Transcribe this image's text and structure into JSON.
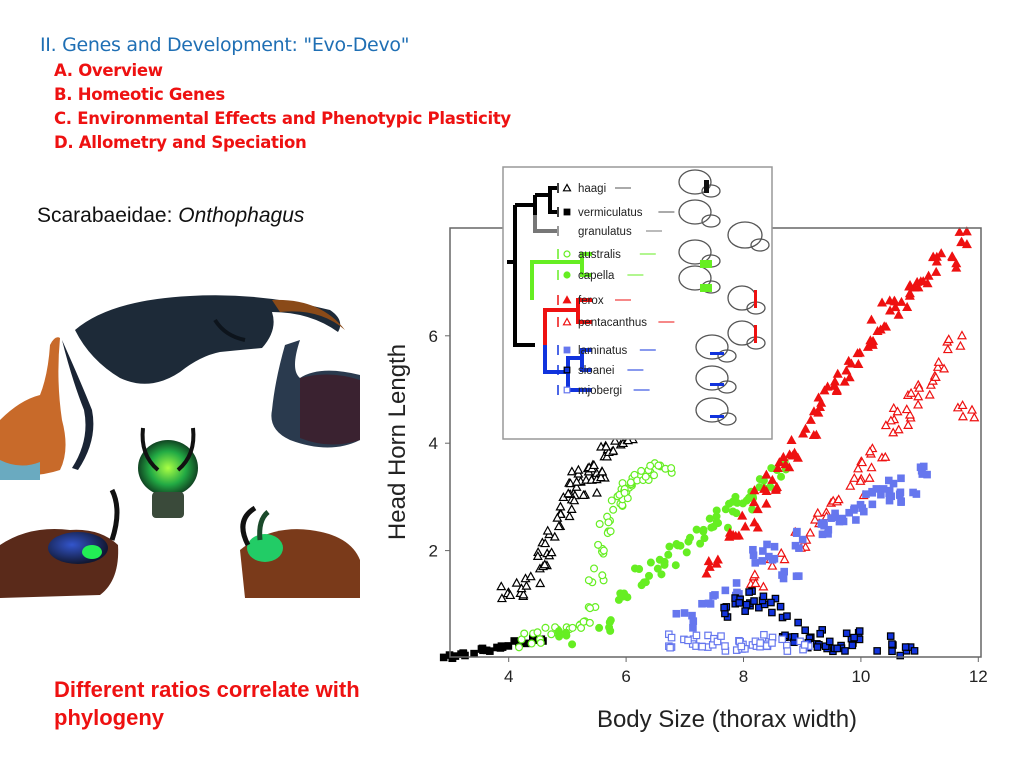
{
  "outline": {
    "heading": "II. Genes and Development: \"Evo-Devo\"",
    "items": [
      "A. Overview",
      "B. Homeotic  Genes",
      "C. Environmental Effects and Phenotypic Plasticity",
      "D. Allometry and Speciation"
    ]
  },
  "taxon": {
    "family": "Scarabaeidae: ",
    "genus": "Onthophagus"
  },
  "caption": "Different ratios correlate with phylogeny",
  "colors": {
    "heading": "#1f6fb4",
    "accent_red": "#ee1111",
    "green": "#66ee22",
    "red": "#ee1111",
    "blue_light": "#6677ee",
    "blue_dark": "#1133dd",
    "black": "#000000"
  },
  "chart_data": {
    "type": "scatter",
    "title": "",
    "xlabel": "Body Size (thorax width)",
    "ylabel": "Head Horn Length",
    "xlim": [
      3,
      12
    ],
    "ylim": [
      0,
      7.5
    ],
    "xticks": [
      4,
      6,
      8,
      10,
      12
    ],
    "yticks": [
      2,
      4,
      6
    ],
    "grid": false,
    "legend_position": "inset phylogeny, upper-left",
    "series": [
      {
        "name": "haagi",
        "marker": "open-triangle",
        "color": "#000000",
        "x": [
          4.0,
          4.2,
          4.4,
          4.6,
          4.7,
          4.8,
          4.9,
          5.0,
          5.1,
          5.2,
          5.3,
          5.4,
          5.5,
          5.6,
          5.7,
          5.8,
          5.9,
          6.0,
          6.05
        ],
        "y": [
          1.2,
          1.3,
          1.5,
          1.8,
          2.0,
          2.4,
          2.7,
          2.9,
          3.1,
          3.3,
          3.4,
          3.2,
          3.6,
          3.5,
          3.8,
          3.9,
          4.0,
          4.1,
          4.2
        ]
      },
      {
        "name": "vermiculatus",
        "marker": "filled-square",
        "color": "#000000",
        "x": [
          3.0,
          3.3,
          3.6,
          3.9,
          4.2,
          4.5
        ],
        "y": [
          0.02,
          0.08,
          0.15,
          0.22,
          0.3,
          0.35
        ]
      },
      {
        "name": "australis",
        "marker": "open-circle",
        "color": "#66ee22",
        "x": [
          4.3,
          4.6,
          4.9,
          5.2,
          5.4,
          5.5,
          5.6,
          5.7,
          5.8,
          5.9,
          6.0,
          6.1,
          6.2,
          6.3,
          6.5,
          6.7
        ],
        "y": [
          0.3,
          0.4,
          0.5,
          0.6,
          0.8,
          1.5,
          2.1,
          2.5,
          2.7,
          3.0,
          3.1,
          3.2,
          3.3,
          3.4,
          3.5,
          3.6
        ]
      },
      {
        "name": "capella",
        "marker": "filled-circle",
        "color": "#66ee22",
        "x": [
          5.0,
          5.6,
          6.0,
          6.3,
          6.5,
          6.8,
          7.0,
          7.2,
          7.4,
          7.6,
          7.8,
          8.0,
          8.2,
          8.4,
          8.6
        ],
        "y": [
          0.4,
          0.6,
          1.1,
          1.5,
          1.7,
          1.9,
          2.1,
          2.3,
          2.5,
          2.6,
          2.8,
          2.9,
          3.1,
          3.3,
          3.5
        ]
      },
      {
        "name": "ferox",
        "marker": "filled-triangle",
        "color": "#ee1111",
        "x": [
          7.5,
          7.8,
          8.1,
          8.3,
          8.5,
          8.7,
          8.9,
          9.1,
          9.3,
          9.5,
          9.7,
          9.9,
          10.1,
          10.3,
          10.5,
          10.7,
          10.9,
          11.1,
          11.3,
          11.5,
          11.8
        ],
        "y": [
          1.7,
          2.2,
          2.6,
          3.0,
          3.3,
          3.6,
          3.9,
          4.3,
          4.7,
          4.9,
          5.2,
          5.6,
          5.9,
          6.2,
          6.5,
          6.7,
          6.9,
          7.1,
          7.3,
          7.4,
          7.8
        ]
      },
      {
        "name": "pentacanthus",
        "marker": "open-triangle",
        "color": "#ee1111",
        "x": [
          8.2,
          8.6,
          9.0,
          9.3,
          9.6,
          9.9,
          10.1,
          10.3,
          10.5,
          10.7,
          10.9,
          11.1,
          11.3,
          11.6,
          11.8
        ],
        "y": [
          1.5,
          1.8,
          2.2,
          2.6,
          2.8,
          3.2,
          3.5,
          3.9,
          4.3,
          4.5,
          4.8,
          5.0,
          5.4,
          5.9,
          4.6
        ]
      },
      {
        "name": "laminatus",
        "marker": "filled-square",
        "color": "#6677ee",
        "x": [
          7.0,
          7.4,
          7.8,
          8.2,
          8.5,
          8.8,
          9.0,
          9.3,
          9.5,
          9.8,
          10.0,
          10.2,
          10.4,
          10.6,
          10.8,
          11.0
        ],
        "y": [
          0.7,
          1.1,
          1.3,
          1.9,
          2.0,
          1.6,
          2.2,
          2.4,
          2.6,
          2.7,
          2.9,
          3.0,
          3.1,
          3.2,
          3.0,
          3.4
        ]
      },
      {
        "name": "sloanei",
        "marker": "filled-square",
        "color": "#1133dd",
        "x": [
          7.8,
          8.0,
          8.2,
          8.4,
          8.6,
          8.8,
          9.0,
          9.2,
          9.4,
          9.6,
          9.8,
          10.0,
          10.4,
          10.8
        ],
        "y": [
          0.9,
          1.0,
          1.1,
          1.1,
          0.9,
          0.5,
          0.3,
          0.4,
          0.3,
          0.25,
          0.3,
          0.4,
          0.3,
          0.2
        ]
      },
      {
        "name": "mjobergi",
        "marker": "open-square",
        "color": "#6677ee",
        "x": [
          6.8,
          7.1,
          7.3,
          7.6,
          7.8,
          8.0,
          8.2,
          8.4,
          8.6,
          9.0
        ],
        "y": [
          0.3,
          0.35,
          0.25,
          0.3,
          0.25,
          0.3,
          0.28,
          0.3,
          0.25,
          0.3
        ]
      }
    ],
    "inset_phylogeny": {
      "taxa": [
        {
          "name": "haagi",
          "clade_color": "#000000"
        },
        {
          "name": "vermiculatus",
          "clade_color": "#000000"
        },
        {
          "name": "granulatus",
          "clade_color": "#777777"
        },
        {
          "name": "australis",
          "clade_color": "#66ee22"
        },
        {
          "name": "capella",
          "clade_color": "#66ee22"
        },
        {
          "name": "ferox",
          "clade_color": "#ee1111"
        },
        {
          "name": "pentacanthus",
          "clade_color": "#ee1111"
        },
        {
          "name": "laminatus",
          "clade_color": "#1133dd"
        },
        {
          "name": "sloanei",
          "clade_color": "#1133dd"
        },
        {
          "name": "mjobergi",
          "clade_color": "#1133dd"
        }
      ]
    }
  }
}
